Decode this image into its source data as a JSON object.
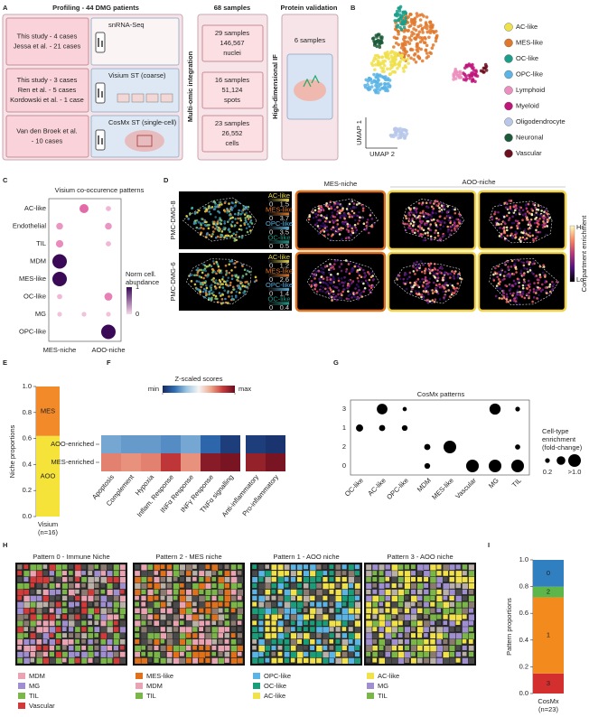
{
  "A": {
    "letter": "A",
    "title": "Profiling - 44 DMG patients",
    "cohorts": [
      {
        "lines": [
          "This study - 4 cases",
          "Jessa et al. - 21 cases"
        ],
        "method": "snRNA-Seq"
      },
      {
        "lines": [
          "This study - 3 cases",
          "Ren et al. - 5 cases",
          "Kordowski et al. - 1 case"
        ],
        "method": "Visium ST (coarse)"
      },
      {
        "lines": [
          "Van den Broek et al.",
          "- 10 cases"
        ],
        "method": "CosMx ST (single-cell)"
      }
    ],
    "integration": "Multi-omic integration",
    "samples_title": "68 samples",
    "samples": [
      {
        "lines": [
          "29 samples",
          "146,567",
          "nuclei"
        ]
      },
      {
        "lines": [
          "16 samples",
          "51,124",
          "spots"
        ]
      },
      {
        "lines": [
          "23 samples",
          "26,552",
          "cells"
        ]
      }
    ],
    "validation_title": "Protein validation",
    "validation_method": "High-dimensional IF",
    "validation_samples": "6 samples"
  },
  "B": {
    "letter": "B",
    "axis_labels": [
      "UMAP 1",
      "UMAP 2"
    ],
    "legend": [
      {
        "name": "AC-like",
        "color": "#f0e04a"
      },
      {
        "name": "MES-like",
        "color": "#e0782a"
      },
      {
        "name": "OC-like",
        "color": "#1a9e8a"
      },
      {
        "name": "OPC-like",
        "color": "#5ab4e5"
      },
      {
        "name": "Lymphoid",
        "color": "#ec8fbf"
      },
      {
        "name": "Myeloid",
        "color": "#c0157a"
      },
      {
        "name": "Oligodendrocyte",
        "color": "#b9c8ea"
      },
      {
        "name": "Neuronal",
        "color": "#1d5a3a"
      },
      {
        "name": "Vascular",
        "color": "#6b1020"
      }
    ]
  },
  "C": {
    "letter": "C",
    "title": "Visium co-occurence patterns",
    "rows": [
      "AC-like",
      "Endothelial",
      "TIL",
      "MDM",
      "MES-like",
      "OC-like",
      "MG",
      "OPC-like"
    ],
    "columns": [
      "MES-niche",
      null,
      "AOO-niche"
    ],
    "values": [
      [
        null,
        0.5,
        0.15
      ],
      [
        0.3,
        null,
        0.3
      ],
      [
        0.35,
        null,
        0.15
      ],
      [
        1,
        null,
        null
      ],
      [
        1,
        null,
        null
      ],
      [
        0.15,
        null,
        0.4
      ],
      [
        0.1,
        0.1,
        0.1
      ],
      [
        null,
        null,
        1
      ]
    ],
    "colors": [
      "#f6d8ea",
      "#e36aa8",
      "#3a0a57"
    ],
    "legend_title": [
      "Norm cell.",
      "abundance"
    ],
    "legend_ticks": [
      0,
      1
    ]
  },
  "D": {
    "letter": "D",
    "samples": [
      "PMC-DMG-8",
      "PMC-DMG-6"
    ],
    "headers": [
      "MES-niche",
      "AOO-niche"
    ],
    "insets": [
      [
        {
          "name": "AC-like",
          "min": 0,
          "max": 1.5,
          "color": "#e8d84a"
        },
        {
          "name": "MES-like",
          "min": 0,
          "max": 3.7,
          "color": "#e0782a"
        },
        {
          "name": "OPC-like",
          "min": 0,
          "max": 3.5,
          "color": "#5ab4e5"
        },
        {
          "name": "OC-like",
          "min": 0,
          "max": 0.5,
          "color": "#1a9e8a"
        }
      ],
      [
        {
          "name": "AC-like",
          "min": 0,
          "max": 1.2,
          "color": "#e8d84a"
        },
        {
          "name": "MES-like",
          "min": 0,
          "max": 2.6,
          "color": "#e0782a"
        },
        {
          "name": "OPC-like",
          "min": 0,
          "max": 1.4,
          "color": "#5ab4e5"
        },
        {
          "name": "OC-like",
          "min": 0,
          "max": 0.4,
          "color": "#1a9e8a"
        }
      ]
    ],
    "colorbar_title": "Compartment enrichment",
    "colorbar_ticks": [
      "Hi",
      "Lo"
    ]
  },
  "E": {
    "letter": "E",
    "ylabel": "Niche proportions",
    "ylim": [
      0,
      1
    ],
    "yticks": [
      {
        "value": 0,
        "label": "0.0"
      },
      {
        "value": 0.2,
        "label": "0.2"
      },
      {
        "value": 0.4,
        "label": "0.4"
      },
      {
        "value": 0.6,
        "label": "0.6"
      },
      {
        "value": 0.8,
        "label": "0.8"
      },
      {
        "value": 1,
        "label": "1.0"
      }
    ],
    "segments": [
      {
        "name": "AOO",
        "value": 0.62,
        "color": "#f5e33a"
      },
      {
        "name": "MES",
        "value": 0.38,
        "color": "#f28a2a"
      }
    ],
    "xlabel": [
      "Visium",
      "(n=16)"
    ]
  },
  "F": {
    "letter": "F",
    "colorbar_title": "Z-scaled scores",
    "colorbar_ticks": [
      {
        "value": -1,
        "label": "min"
      },
      {
        "value": 1,
        "label": "max"
      }
    ],
    "colors": [
      "#162a63",
      "#2f6db3",
      "#9cc6e3",
      "#f5f5f5",
      "#f0a78c",
      "#c73b3b",
      "#6b0d1e"
    ],
    "rows": [
      "AOO-enriched",
      "MES-enriched"
    ],
    "column_groups": [
      {
        "columns": [
          "Apoptosis",
          "Complement",
          "Hypoxia",
          "Inflam. Response",
          "INFα Response",
          "INFγ Response",
          "TNFα signalling"
        ],
        "values": [
          [
            -0.45,
            -0.5,
            -0.5,
            -0.55,
            -0.45,
            -0.7,
            -0.9
          ],
          [
            0.45,
            0.4,
            0.45,
            0.7,
            0.4,
            0.9,
            0.95
          ]
        ]
      },
      {
        "columns": [
          "Anti-inflammatory",
          "Pro-inflammatory"
        ],
        "values": [
          [
            -0.9,
            -0.95
          ],
          [
            0.85,
            0.95
          ]
        ]
      }
    ]
  },
  "G": {
    "letter": "G",
    "title": "CosMx patterns",
    "columns": [
      "OC-like",
      "AC-like",
      "OPC-like",
      "MDM",
      "MES-like",
      "Vascular",
      "MG",
      "TIL"
    ],
    "rows": [
      "3",
      "1",
      "2",
      "0"
    ],
    "values": [
      [
        null,
        0.8,
        0.15,
        null,
        null,
        null,
        0.85,
        0.2
      ],
      [
        0.45,
        0.35,
        0.3,
        null,
        null,
        null,
        null,
        null
      ],
      [
        null,
        null,
        null,
        0.35,
        1.0,
        null,
        null,
        0.25
      ],
      [
        null,
        null,
        null,
        0.3,
        null,
        1.0,
        1.0,
        1.0
      ]
    ],
    "legend_title": [
      "Cell-type",
      "enrichment",
      "(fold-change)"
    ],
    "legend_sizes": [
      0.2,
      0.6,
      1.0
    ],
    "legend_size_labels": [
      "0.2",
      null,
      ">1.0"
    ]
  },
  "H": {
    "letter": "H",
    "panels": [
      {
        "title": "Pattern 0 - Immune Niche",
        "legend": [
          {
            "name": "MDM",
            "color": "#eaa3b3"
          },
          {
            "name": "MG",
            "color": "#9f8fd0"
          },
          {
            "name": "TIL",
            "color": "#7ab648"
          },
          {
            "name": "Vascular",
            "color": "#d23a3a"
          }
        ]
      },
      {
        "title": "Pattern 2 - MES niche",
        "legend": [
          {
            "name": "MES-like",
            "color": "#e0701a"
          },
          {
            "name": "MDM",
            "color": "#eaa3b3"
          },
          {
            "name": "TIL",
            "color": "#7ab648"
          }
        ]
      },
      {
        "title": "Pattern 1 - AOO niche",
        "legend": [
          {
            "name": "OPC-like",
            "color": "#5ab4e5"
          },
          {
            "name": "OC-like",
            "color": "#1a9e7a"
          },
          {
            "name": "AC-like",
            "color": "#f2e24a"
          }
        ]
      },
      {
        "title": "Pattern 3 - AOO niche",
        "legend": [
          {
            "name": "AC-like",
            "color": "#f2e24a"
          },
          {
            "name": "MG",
            "color": "#9f8fd0"
          },
          {
            "name": "TIL",
            "color": "#7ab648"
          }
        ]
      }
    ]
  },
  "I": {
    "letter": "I",
    "ylabel": "Pattern proportions",
    "ylim": [
      0,
      1
    ],
    "yticks": [
      {
        "value": 0,
        "label": "0.0"
      },
      {
        "value": 0.2,
        "label": "0.2"
      },
      {
        "value": 0.4,
        "label": "0.4"
      },
      {
        "value": 0.6,
        "label": "0.6"
      },
      {
        "value": 0.8,
        "label": "0.8"
      },
      {
        "value": 1,
        "label": "1.0"
      }
    ],
    "segments": [
      {
        "name": "3",
        "value": 0.15,
        "color": "#d32f2f"
      },
      {
        "name": "1",
        "value": 0.57,
        "color": "#f28a1e"
      },
      {
        "name": "2",
        "value": 0.08,
        "color": "#5cb64a"
      },
      {
        "name": "0",
        "value": 0.2,
        "color": "#2f7fc1"
      }
    ],
    "xlabel": [
      "CosMx",
      "(n=23)"
    ]
  }
}
